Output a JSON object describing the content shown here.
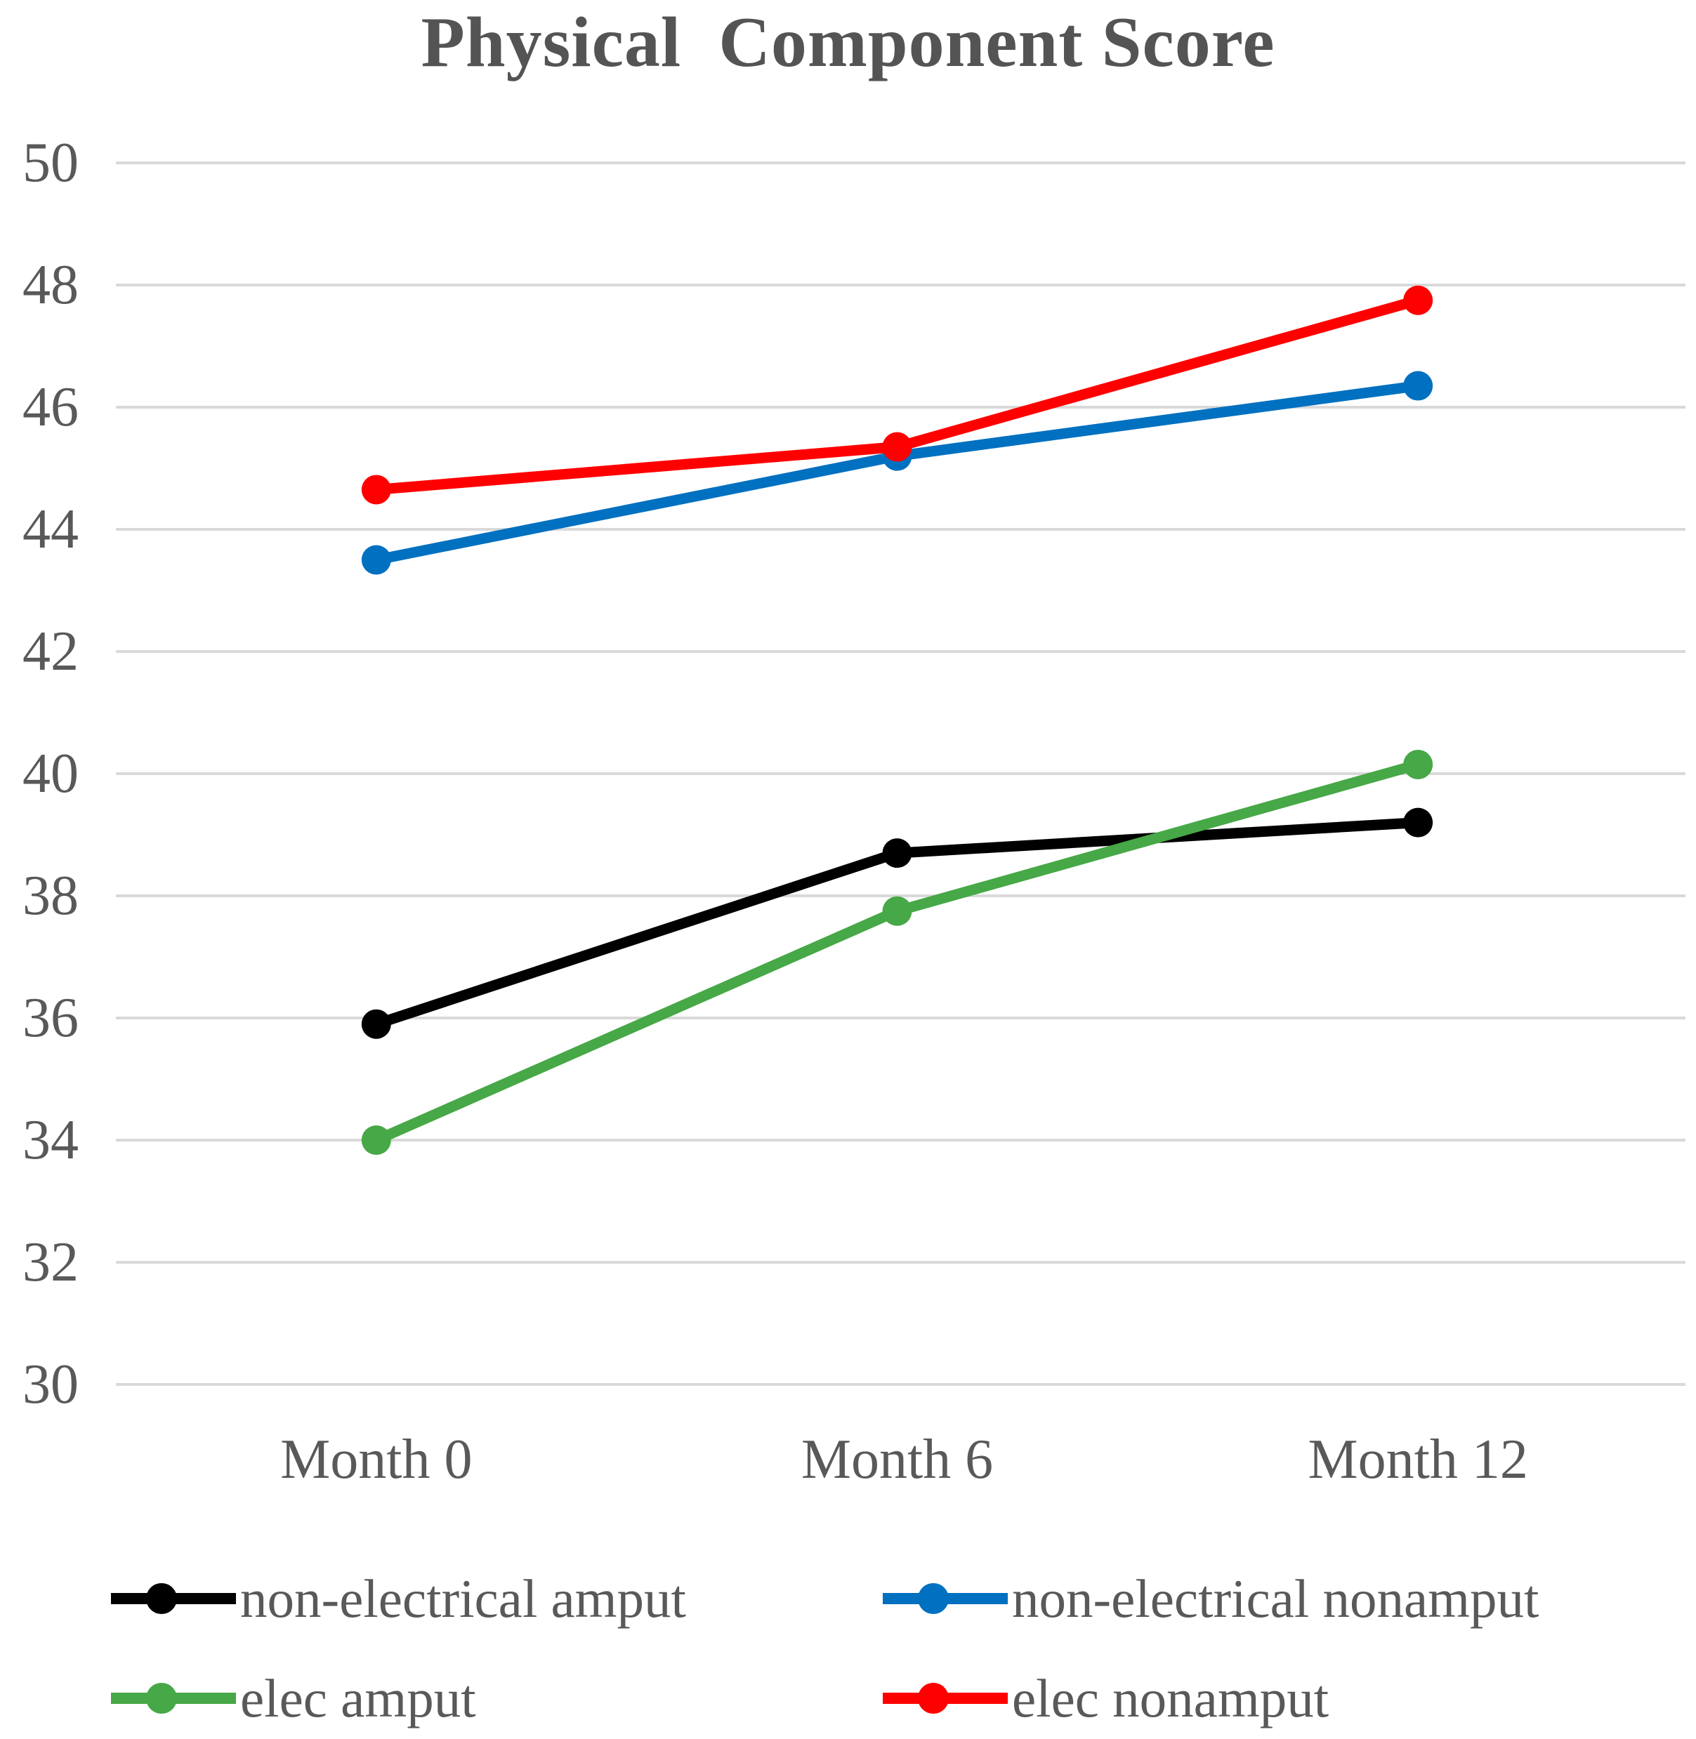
{
  "chart_data": {
    "type": "line",
    "title": "Physical  Component Score",
    "categories": [
      "Month 0",
      "Month 6",
      "Month 12"
    ],
    "series": [
      {
        "name": "non-electrical amput",
        "color": "#000000",
        "values": [
          35.9,
          38.7,
          39.2
        ]
      },
      {
        "name": "non-electrical nonamput",
        "color": "#0070C0",
        "values": [
          43.5,
          45.2,
          46.35
        ]
      },
      {
        "name": "elec amput",
        "color": "#46A846",
        "values": [
          34.0,
          37.75,
          40.15
        ]
      },
      {
        "name": "elec nonamput",
        "color": "#FF0000",
        "values": [
          44.65,
          45.35,
          47.75
        ]
      }
    ],
    "ylim": [
      30,
      50
    ],
    "yticks": [
      30,
      32,
      34,
      36,
      38,
      40,
      42,
      44,
      46,
      48,
      50
    ],
    "grid": true,
    "gridline_color": "#D9D9D9",
    "axis_label_color": "#595959",
    "legend_position": "bottom",
    "marker": "circle"
  }
}
